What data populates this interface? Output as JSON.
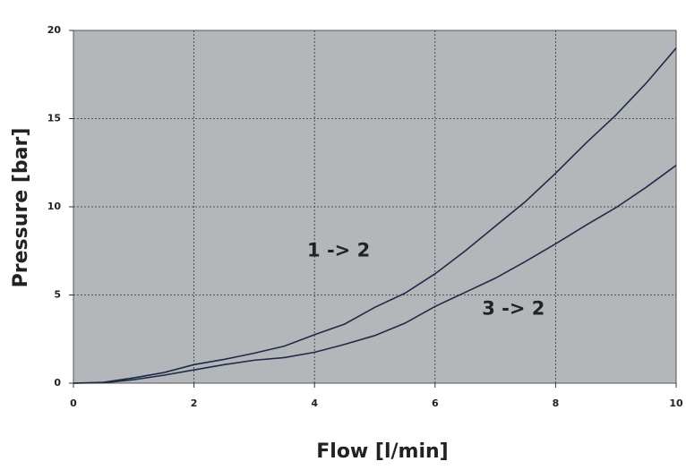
{
  "chart_data": {
    "type": "line",
    "x_label": "Flow [l/min]",
    "y_label": "Pressure [bar]",
    "x": [
      0,
      0.5,
      1,
      1.5,
      2,
      2.5,
      3,
      3.5,
      4,
      4.5,
      5,
      5.5,
      6,
      6.5,
      7,
      7.5,
      8,
      8.5,
      9,
      9.5,
      10
    ],
    "series": [
      {
        "name": "1 -> 2",
        "color": "#1e2c4a",
        "values": [
          0,
          0.05,
          0.3,
          0.6,
          1.05,
          1.35,
          1.7,
          2.1,
          2.75,
          3.35,
          4.3,
          5.1,
          6.2,
          7.5,
          8.9,
          10.3,
          11.9,
          13.6,
          15.2,
          17.0,
          19.0
        ]
      },
      {
        "name": "3 -> 2",
        "color": "#1e2c4a",
        "values": [
          0,
          0.02,
          0.2,
          0.45,
          0.75,
          1.05,
          1.3,
          1.45,
          1.75,
          2.2,
          2.7,
          3.4,
          4.35,
          5.15,
          5.95,
          6.9,
          7.9,
          8.95,
          9.95,
          11.1,
          12.35
        ]
      }
    ],
    "xlim": [
      0,
      10
    ],
    "xticks": [
      0,
      2,
      4,
      6,
      8,
      10
    ],
    "ylim": [
      0,
      20
    ],
    "yticks": [
      0,
      5,
      10,
      15,
      20
    ],
    "grid": true,
    "background": "#b4b7ba"
  }
}
